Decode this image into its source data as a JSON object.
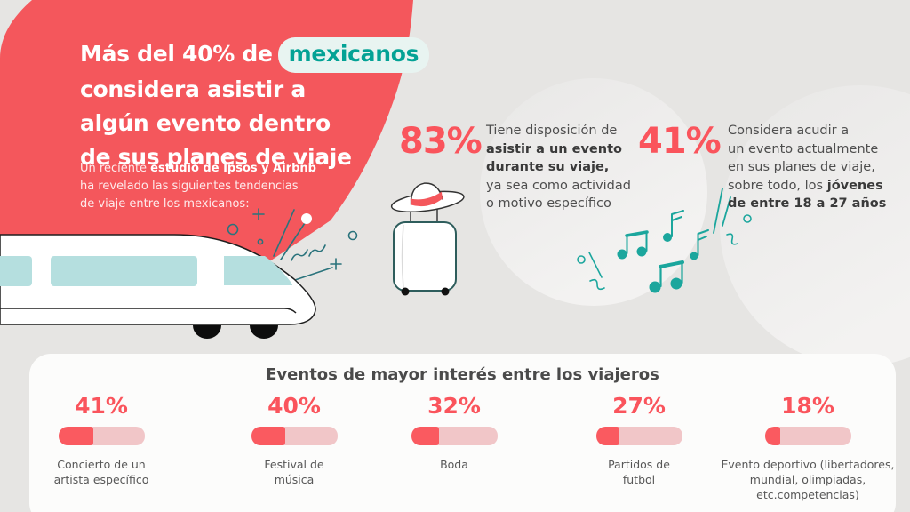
{
  "colors": {
    "coral_blob": "#F4575C",
    "accent_number": "#FA545C",
    "teal_highlight": "#03A295",
    "teal_notes": "#1BA69D",
    "teal_decor": "#2A737C",
    "train_window_teal": "#B5DFDF",
    "bar_track": "#F1C6C8",
    "bar_fill": "#FA5A60",
    "background": "#E6E5E3",
    "panel": "#FCFCFB"
  },
  "hero": {
    "headline_line1_pre": "Más del 40% de",
    "headline_highlight": "mexicanos",
    "headline_line2": "considera asistir a",
    "headline_line3": "algún evento dentro",
    "headline_line4": "de sus planes de viaje",
    "sub_line1_pre": "Un reciente ",
    "sub_line1_bold": "estudio de Ipsos y Airbnb",
    "sub_line2": "ha revelado las siguientes tendencias",
    "sub_line3": "de viaje entre los mexicanos:"
  },
  "stat_83": {
    "value": "83%",
    "line1": "Tiene disposición de",
    "line2": "asistir a un evento",
    "line3": "durante su viaje,",
    "line4": "ya sea como actividad",
    "line5": "o motivo específico"
  },
  "stat_41": {
    "value": "41%",
    "line1": "Considera acudir a",
    "line2": "un evento actualmente",
    "line3": "en sus planes de viaje,",
    "line4_pre": "sobre todo, los ",
    "line4_bold": "jóvenes",
    "line5_bold": "de entre 18 a 27 años"
  },
  "events": {
    "title": "Eventos de mayor interés entre los viajeros",
    "items": [
      {
        "value": "41%",
        "pct": 41,
        "label": "Concierto de un artista específico"
      },
      {
        "value": "40%",
        "pct": 40,
        "label": "Festival de música"
      },
      {
        "value": "32%",
        "pct": 32,
        "label": "Boda"
      },
      {
        "value": "27%",
        "pct": 27,
        "label": "Partidos de futbol"
      },
      {
        "value": "18%",
        "pct": 18,
        "label": "Evento deportivo (libertadores, mundial, olimpiadas, etc.competencias)"
      }
    ]
  },
  "chart_data": {
    "type": "bar",
    "title": "Eventos de mayor interés entre los viajeros",
    "categories": [
      "Concierto de un artista específico",
      "Festival de música",
      "Boda",
      "Partidos de futbol",
      "Evento deportivo (libertadores, mundial, olimpiadas, etc.competencias)"
    ],
    "values": [
      41,
      40,
      32,
      27,
      18
    ],
    "unit": "%",
    "ylim": [
      0,
      100
    ],
    "grid": false,
    "legend": false,
    "standalone_stats": [
      {
        "value": 83,
        "unit": "%",
        "label": "Tiene disposición de asistir a un evento durante su viaje, ya sea como actividad o motivo específico"
      },
      {
        "value": 41,
        "unit": "%",
        "label": "Considera acudir a un evento actualmente en sus planes de viaje, sobre todo, los jóvenes de entre 18 a 27 años"
      },
      {
        "value": 40,
        "unit": "%",
        "qualifier": "más del",
        "label": "Más del 40% de mexicanos considera asistir a algún evento dentro de sus planes de viaje"
      }
    ],
    "source_note": "Un reciente estudio de Ipsos y Airbnb ha revelado las siguientes tendencias de viaje entre los mexicanos"
  }
}
